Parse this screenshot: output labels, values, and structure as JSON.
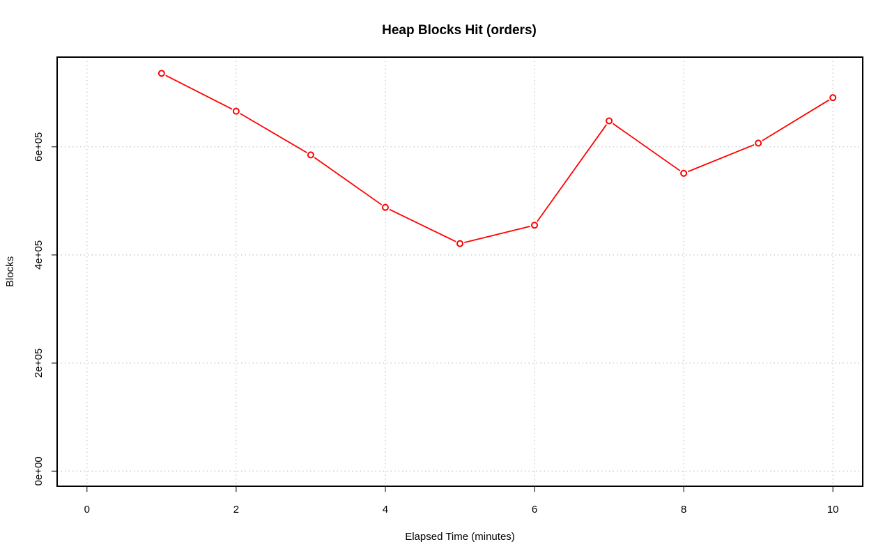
{
  "chart_data": {
    "type": "line",
    "title": "Heap Blocks Hit (orders)",
    "xlabel": "Elapsed Time (minutes)",
    "ylabel": "Blocks",
    "xlim": [
      -0.4,
      10.4
    ],
    "ylim": [
      -28000,
      766000
    ],
    "xticks": [
      0,
      2,
      4,
      6,
      8,
      10
    ],
    "xtick_labels": [
      "0",
      "2",
      "4",
      "6",
      "8",
      "10"
    ],
    "yticks": [
      0,
      200000,
      400000,
      600000
    ],
    "ytick_labels": [
      "0e+00",
      "2e+05",
      "4e+05",
      "6e+05"
    ],
    "grid": true,
    "series": [
      {
        "color": "#ff0000",
        "marker": "circle",
        "x": [
          1,
          2,
          3,
          4,
          5,
          6,
          7,
          8,
          9,
          10
        ],
        "y": [
          736000,
          666000,
          585000,
          488000,
          421000,
          455000,
          648000,
          551000,
          607000,
          691000
        ]
      }
    ]
  }
}
